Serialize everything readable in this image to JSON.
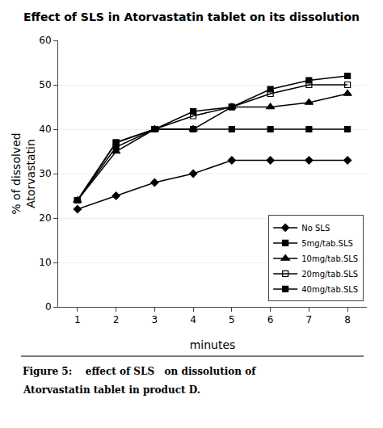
{
  "chart_data": {
    "type": "line",
    "title": "Effect of SLS in Atorvastatin tablet on its dissolution",
    "xlabel": "minutes",
    "ylabel": "% of dissolved\nAtorvastatin",
    "x": [
      1,
      2,
      3,
      4,
      5,
      6,
      7,
      8
    ],
    "xlim": [
      0.5,
      8.5
    ],
    "xticks": [
      1,
      2,
      3,
      4,
      5,
      6,
      7,
      8
    ],
    "ylim": [
      0,
      60
    ],
    "yticks": [
      0,
      10,
      20,
      30,
      40,
      50,
      60
    ],
    "grid": "y",
    "legend": "lower right",
    "annotations": [
      "Figure 5:    effect of SLS   on dissolution of",
      "Atorvastatin tablet in product D."
    ],
    "series": [
      {
        "name": "No SLS",
        "color": "#000000",
        "marker": "diamond",
        "values": [
          22,
          25,
          28,
          30,
          33,
          33,
          33,
          33
        ]
      },
      {
        "name": "5mg/tab.SLS",
        "color": "#000000",
        "marker": "square",
        "values": [
          24,
          36,
          40,
          40,
          40,
          40,
          40,
          40
        ]
      },
      {
        "name": "10mg/tab.SLS",
        "color": "#000000",
        "marker": "triangle-up",
        "values": [
          24,
          35,
          40,
          40,
          45,
          45,
          46,
          48
        ]
      },
      {
        "name": "20mg/tab.SLS",
        "color": "#000000",
        "marker": "square-open",
        "values": [
          24,
          37,
          40,
          43,
          45,
          48,
          50,
          50
        ]
      },
      {
        "name": "40mg/tab.SLS",
        "color": "#000000",
        "marker": "square",
        "values": [
          24,
          37,
          40,
          44,
          45,
          49,
          51,
          52
        ]
      }
    ]
  }
}
